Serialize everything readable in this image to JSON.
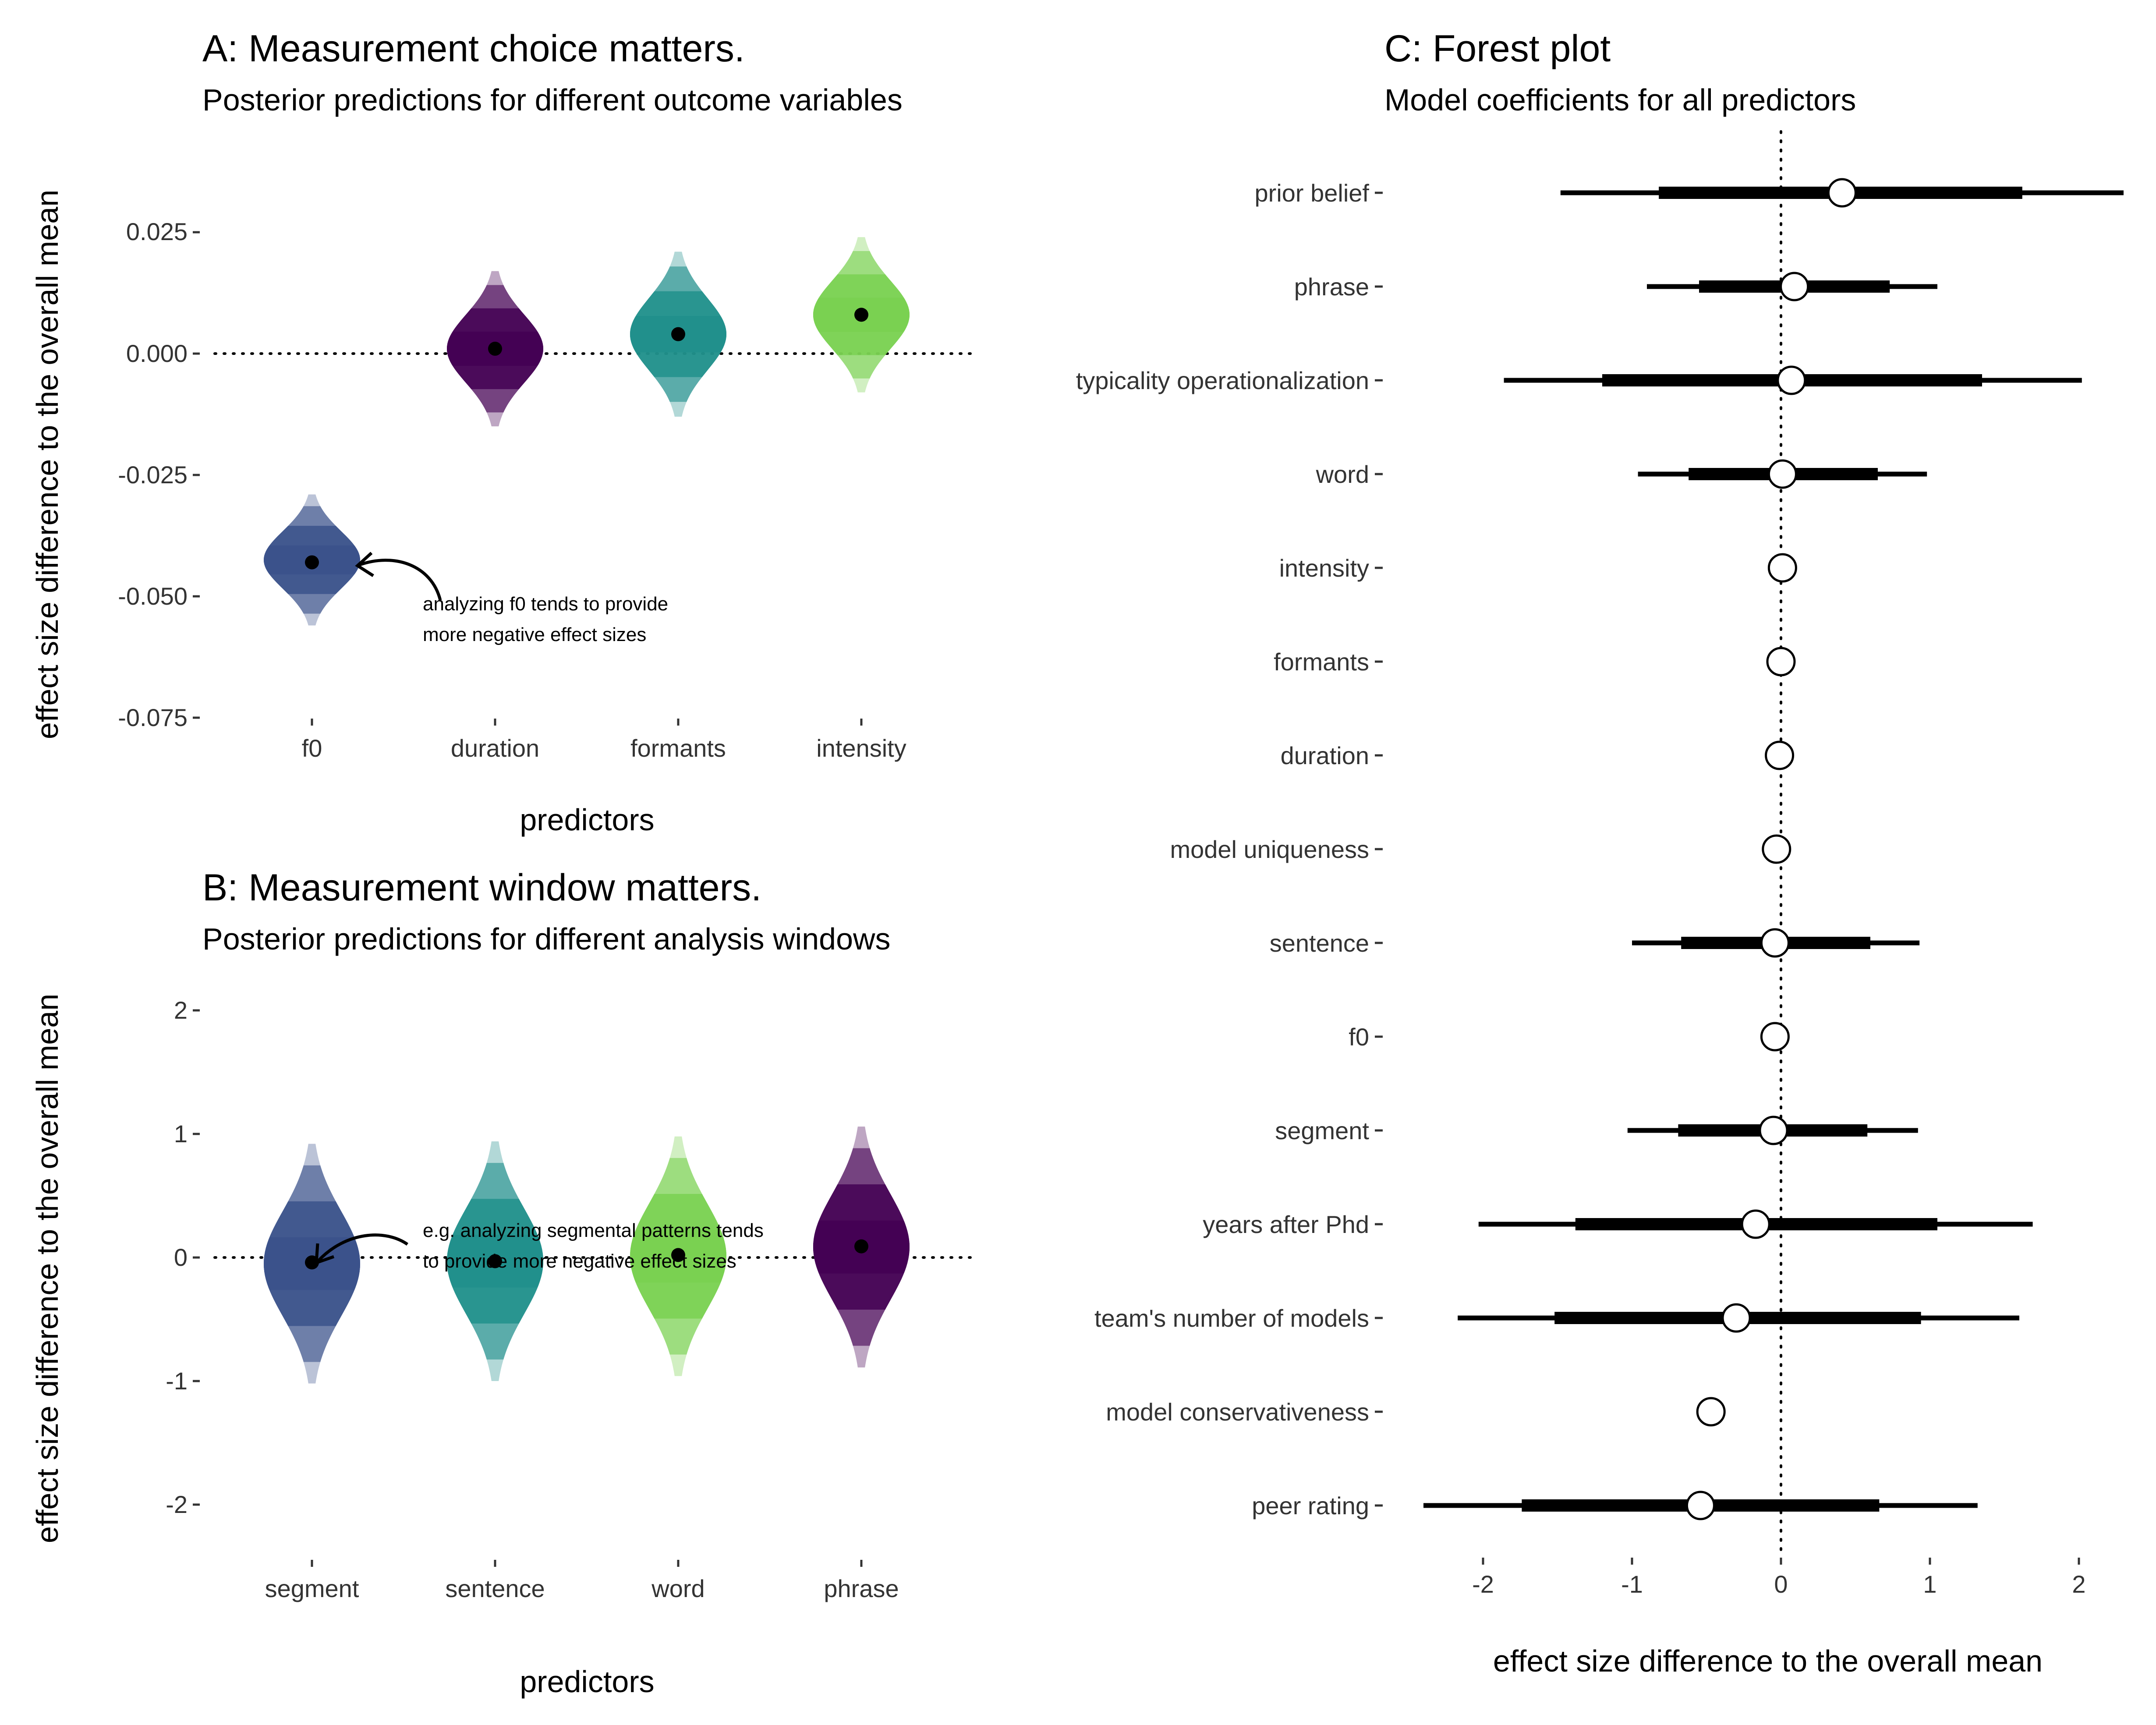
{
  "chart_data": [
    {
      "panel": "A",
      "type": "violin",
      "title": "A: Measurement choice matters.",
      "subtitle": "Posterior predictions for different outcome variables",
      "xlabel": "predictors",
      "ylabel": "effect size difference to the overall mean",
      "categories": [
        "f0",
        "duration",
        "formants",
        "intensity"
      ],
      "yticks": [
        0.025,
        0,
        -0.025,
        -0.05,
        -0.075
      ],
      "ytick_labels": [
        "0.025",
        "0.000",
        "-0.025",
        "-0.050",
        "-0.075"
      ],
      "ylim": [
        -0.078,
        0.037
      ],
      "reference_line": 0,
      "series": [
        {
          "category": "f0",
          "median": -0.043,
          "lo": -0.056,
          "hi": -0.029,
          "color": "#3B528B"
        },
        {
          "category": "duration",
          "median": 0.001,
          "lo": -0.015,
          "hi": 0.017,
          "color": "#440154"
        },
        {
          "category": "formants",
          "median": 0.004,
          "lo": -0.013,
          "hi": 0.021,
          "color": "#21908C"
        },
        {
          "category": "intensity",
          "median": 0.008,
          "lo": -0.008,
          "hi": 0.024,
          "color": "#7AD151"
        }
      ],
      "annotation": [
        "analyzing f0 tends to provide",
        "more negative effect sizes"
      ]
    },
    {
      "panel": "B",
      "type": "violin",
      "title": "B: Measurement window matters.",
      "subtitle": "Posterior predictions for different analysis windows",
      "xlabel": "predictors",
      "ylabel": "effect size difference to the overall mean",
      "categories": [
        "segment",
        "sentence",
        "word",
        "phrase"
      ],
      "yticks": [
        2,
        1,
        0,
        -1,
        -2
      ],
      "ytick_labels": [
        "2",
        "1",
        "0",
        "-1",
        "-2"
      ],
      "ylim": [
        -2.45,
        2.6
      ],
      "reference_line": 0,
      "series": [
        {
          "category": "segment",
          "median": -0.04,
          "lo": -1.02,
          "hi": 0.92,
          "color": "#3B528B"
        },
        {
          "category": "sentence",
          "median": -0.03,
          "lo": -1.0,
          "hi": 0.94,
          "color": "#21908C"
        },
        {
          "category": "word",
          "median": 0.02,
          "lo": -0.96,
          "hi": 0.98,
          "color": "#7AD151"
        },
        {
          "category": "phrase",
          "median": 0.09,
          "lo": -0.89,
          "hi": 1.06,
          "color": "#440154"
        }
      ],
      "annotation": [
        "e.g. analyzing segmental patterns tends",
        "to provide more negative effect sizes"
      ]
    },
    {
      "panel": "C",
      "type": "forest",
      "title": "C: Forest plot",
      "subtitle": "Model coefficients for all predictors",
      "xlabel": "effect size difference to the overall mean",
      "xticks": [
        -2,
        -1,
        0,
        1,
        2
      ],
      "xlim": [
        -2.42,
        2.3
      ],
      "reference_line": 0,
      "rows": [
        {
          "label": "prior belief",
          "estimate": 0.41,
          "inner": [
            -0.82,
            1.62
          ],
          "outer": [
            -1.48,
            2.3
          ]
        },
        {
          "label": "phrase",
          "estimate": 0.09,
          "inner": [
            -0.55,
            0.73
          ],
          "outer": [
            -0.9,
            1.05
          ]
        },
        {
          "label": "typicality operationalization",
          "estimate": 0.07,
          "inner": [
            -1.2,
            1.35
          ],
          "outer": [
            -1.86,
            2.02
          ]
        },
        {
          "label": "word",
          "estimate": 0.01,
          "inner": [
            -0.62,
            0.65
          ],
          "outer": [
            -0.96,
            0.98
          ]
        },
        {
          "label": "intensity",
          "estimate": 0.01,
          "inner": null,
          "outer": null
        },
        {
          "label": "formants",
          "estimate": 0.0,
          "inner": null,
          "outer": null
        },
        {
          "label": "duration",
          "estimate": -0.01,
          "inner": null,
          "outer": null
        },
        {
          "label": "model uniqueness",
          "estimate": -0.03,
          "inner": null,
          "outer": null
        },
        {
          "label": "sentence",
          "estimate": -0.04,
          "inner": [
            -0.67,
            0.6
          ],
          "outer": [
            -1.0,
            0.93
          ]
        },
        {
          "label": "f0",
          "estimate": -0.04,
          "inner": null,
          "outer": null
        },
        {
          "label": "segment",
          "estimate": -0.05,
          "inner": [
            -0.69,
            0.58
          ],
          "outer": [
            -1.03,
            0.92
          ]
        },
        {
          "label": "years after Phd",
          "estimate": -0.17,
          "inner": [
            -1.38,
            1.05
          ],
          "outer": [
            -2.03,
            1.69
          ]
        },
        {
          "label": "team's number of models",
          "estimate": -0.3,
          "inner": [
            -1.52,
            0.94
          ],
          "outer": [
            -2.17,
            1.6
          ]
        },
        {
          "label": "model conservativeness",
          "estimate": -0.47,
          "inner": null,
          "outer": null
        },
        {
          "label": "peer rating",
          "estimate": -0.54,
          "inner": [
            -1.74,
            0.66
          ],
          "outer": [
            -2.4,
            1.32
          ]
        }
      ]
    }
  ]
}
